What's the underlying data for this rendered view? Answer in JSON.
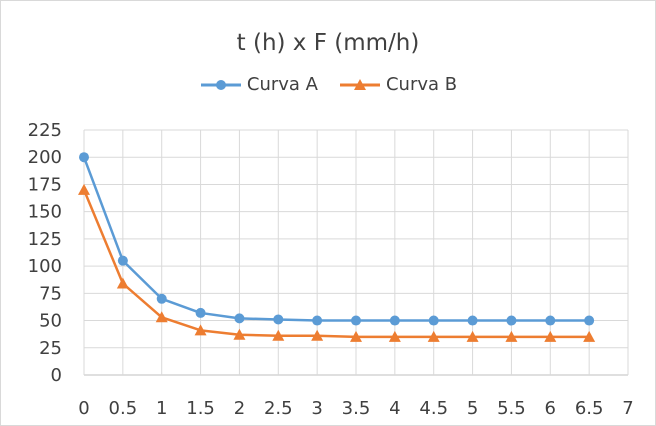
{
  "chart_data": {
    "type": "line",
    "title": "t (h) x F (mm/h)",
    "x": [
      0,
      0.5,
      1,
      1.5,
      2,
      2.5,
      3,
      3.5,
      4,
      4.5,
      5,
      5.5,
      6,
      6.5
    ],
    "xlim": [
      0,
      7
    ],
    "xticks": [
      "0",
      "0.5",
      "1",
      "1.5",
      "2",
      "2.5",
      "3",
      "3.5",
      "4",
      "4.5",
      "5",
      "5.5",
      "6",
      "6.5",
      "7"
    ],
    "ylim": [
      0,
      225
    ],
    "yticks": [
      "0",
      "25",
      "50",
      "75",
      "100",
      "125",
      "150",
      "175",
      "200",
      "225"
    ],
    "grid": true,
    "legend": "top",
    "series": [
      {
        "name": "Curva A",
        "marker": "circle",
        "color": "#5b9bd5",
        "values": [
          200,
          105,
          70,
          57,
          52,
          51,
          50,
          50,
          50,
          50,
          50,
          50,
          50,
          50
        ]
      },
      {
        "name": "Curva B",
        "marker": "triangle",
        "color": "#ed7d31",
        "values": [
          170,
          84,
          53,
          41,
          37,
          36,
          36,
          35,
          35,
          35,
          35,
          35,
          35,
          35
        ]
      }
    ]
  }
}
